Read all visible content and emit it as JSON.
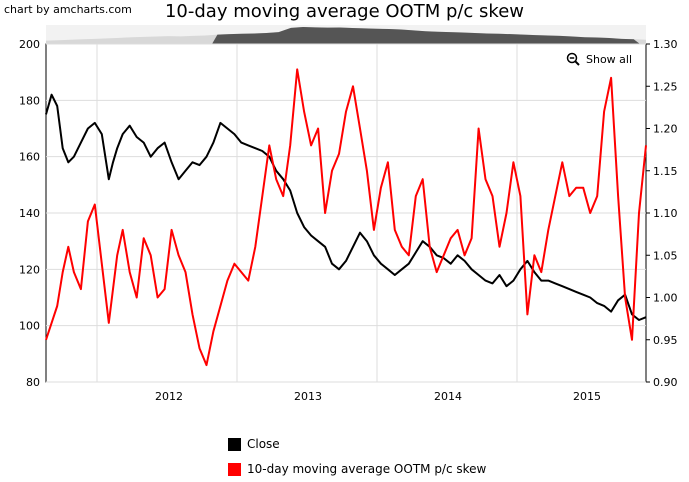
{
  "credit": "chart by amcharts.com",
  "show_all_label": "Show all",
  "legend": [
    {
      "label": "Close",
      "color": "#000000"
    },
    {
      "label": "10-day moving average OOTM p/c skew",
      "color": "#ff0000"
    }
  ],
  "chart_data": {
    "type": "line",
    "title": "10-day moving average OOTM p/c skew",
    "x_range": [
      "2011-03",
      "2015-06"
    ],
    "x_tick_labels": [
      "2012",
      "2013",
      "2014",
      "2015"
    ],
    "y_left": {
      "min": 80,
      "max": 200,
      "ticks": [
        "80",
        "100",
        "120",
        "140",
        "160",
        "180",
        "200"
      ]
    },
    "y_right": {
      "min": 0.9,
      "max": 1.3,
      "ticks": [
        "0.90",
        "0.95",
        "1.00",
        "1.05",
        "1.10",
        "1.15",
        "1.20",
        "1.25",
        "1.30"
      ]
    },
    "grid": true,
    "legend_position": "bottom",
    "series": [
      {
        "name": "Close",
        "axis": "left",
        "color": "#000000",
        "x": [
          2011.15,
          2011.19,
          2011.23,
          2011.27,
          2011.31,
          2011.35,
          2011.4,
          2011.45,
          2011.5,
          2011.55,
          2011.6,
          2011.63,
          2011.66,
          2011.7,
          2011.75,
          2011.8,
          2011.85,
          2011.9,
          2011.95,
          2012.0,
          2012.05,
          2012.1,
          2012.15,
          2012.2,
          2012.25,
          2012.3,
          2012.35,
          2012.4,
          2012.45,
          2012.5,
          2012.55,
          2012.6,
          2012.65,
          2012.7,
          2012.75,
          2012.8,
          2012.85,
          2012.9,
          2012.95,
          2013.0,
          2013.05,
          2013.1,
          2013.15,
          2013.2,
          2013.25,
          2013.3,
          2013.35,
          2013.4,
          2013.45,
          2013.5,
          2013.55,
          2013.6,
          2013.65,
          2013.7,
          2013.75,
          2013.8,
          2013.85,
          2013.9,
          2013.95,
          2014.0,
          2014.05,
          2014.1,
          2014.15,
          2014.2,
          2014.25,
          2014.3,
          2014.35,
          2014.4,
          2014.45,
          2014.5,
          2014.55,
          2014.6,
          2014.65,
          2014.7,
          2014.75,
          2014.8,
          2014.85,
          2014.9,
          2014.95,
          2015.0,
          2015.05,
          2015.1,
          2015.15,
          2015.2,
          2015.25,
          2015.3,
          2015.35,
          2015.4,
          2015.45
        ],
        "values": [
          175,
          182,
          178,
          163,
          158,
          160,
          165,
          170,
          172,
          168,
          152,
          158,
          163,
          168,
          171,
          167,
          165,
          160,
          163,
          165,
          158,
          152,
          155,
          158,
          157,
          160,
          165,
          172,
          170,
          168,
          165,
          164,
          163,
          162,
          160,
          155,
          152,
          148,
          140,
          135,
          132,
          130,
          128,
          122,
          120,
          123,
          128,
          133,
          130,
          125,
          122,
          120,
          118,
          120,
          122,
          126,
          130,
          128,
          125,
          124,
          122,
          125,
          123,
          120,
          118,
          116,
          115,
          118,
          114,
          116,
          120,
          123,
          119,
          116,
          116,
          115,
          114,
          113,
          112,
          111,
          110,
          108,
          107,
          105,
          109,
          111,
          104,
          102,
          103
        ]
      },
      {
        "name": "10-day moving average OOTM p/c skew",
        "axis": "right",
        "color": "#ff0000",
        "x": [
          2011.15,
          2011.19,
          2011.23,
          2011.27,
          2011.31,
          2011.35,
          2011.4,
          2011.45,
          2011.5,
          2011.55,
          2011.6,
          2011.63,
          2011.66,
          2011.7,
          2011.75,
          2011.8,
          2011.85,
          2011.9,
          2011.95,
          2012.0,
          2012.05,
          2012.1,
          2012.15,
          2012.2,
          2012.25,
          2012.3,
          2012.35,
          2012.4,
          2012.45,
          2012.5,
          2012.55,
          2012.6,
          2012.65,
          2012.7,
          2012.75,
          2012.8,
          2012.85,
          2012.9,
          2012.95,
          2013.0,
          2013.05,
          2013.1,
          2013.15,
          2013.2,
          2013.25,
          2013.3,
          2013.35,
          2013.4,
          2013.45,
          2013.5,
          2013.55,
          2013.6,
          2013.65,
          2013.7,
          2013.75,
          2013.8,
          2013.85,
          2013.9,
          2013.95,
          2014.0,
          2014.05,
          2014.1,
          2014.15,
          2014.2,
          2014.25,
          2014.3,
          2014.35,
          2014.4,
          2014.45,
          2014.5,
          2014.55,
          2014.6,
          2014.65,
          2014.7,
          2014.75,
          2014.8,
          2014.85,
          2014.9,
          2014.95,
          2015.0,
          2015.05,
          2015.1,
          2015.15,
          2015.2,
          2015.25,
          2015.3,
          2015.35,
          2015.4,
          2015.45
        ],
        "values": [
          0.95,
          0.97,
          0.99,
          1.03,
          1.06,
          1.03,
          1.01,
          1.09,
          1.11,
          1.04,
          0.97,
          1.01,
          1.05,
          1.08,
          1.03,
          1.0,
          1.07,
          1.05,
          1.0,
          1.01,
          1.08,
          1.05,
          1.03,
          0.98,
          0.94,
          0.92,
          0.96,
          0.99,
          1.02,
          1.04,
          1.03,
          1.02,
          1.06,
          1.12,
          1.18,
          1.14,
          1.12,
          1.18,
          1.27,
          1.22,
          1.18,
          1.2,
          1.1,
          1.15,
          1.17,
          1.22,
          1.25,
          1.2,
          1.15,
          1.08,
          1.13,
          1.16,
          1.08,
          1.06,
          1.05,
          1.12,
          1.14,
          1.06,
          1.03,
          1.05,
          1.07,
          1.08,
          1.05,
          1.07,
          1.2,
          1.14,
          1.12,
          1.06,
          1.1,
          1.16,
          1.12,
          0.98,
          1.05,
          1.03,
          1.08,
          1.12,
          1.16,
          1.12,
          1.13,
          1.13,
          1.1,
          1.12,
          1.22,
          1.26,
          1.12,
          1.0,
          0.95,
          1.1,
          1.18
        ]
      }
    ]
  },
  "scrollbar": {
    "series_values": [
      0.2,
      0.22,
      0.25,
      0.28,
      0.3,
      0.33,
      0.36,
      0.4,
      0.42,
      0.44,
      0.46,
      0.45,
      0.48,
      0.5,
      0.55,
      0.58,
      0.6,
      0.62,
      0.65,
      0.7,
      0.95,
      1.0,
      0.98,
      0.96,
      0.97,
      0.94,
      0.92,
      0.9,
      0.88,
      0.85,
      0.8,
      0.75,
      0.72,
      0.7,
      0.68,
      0.65,
      0.62,
      0.6,
      0.58,
      0.55,
      0.52,
      0.5,
      0.48,
      0.44,
      0.4,
      0.38,
      0.35,
      0.3,
      0.28,
      0.25
    ]
  }
}
